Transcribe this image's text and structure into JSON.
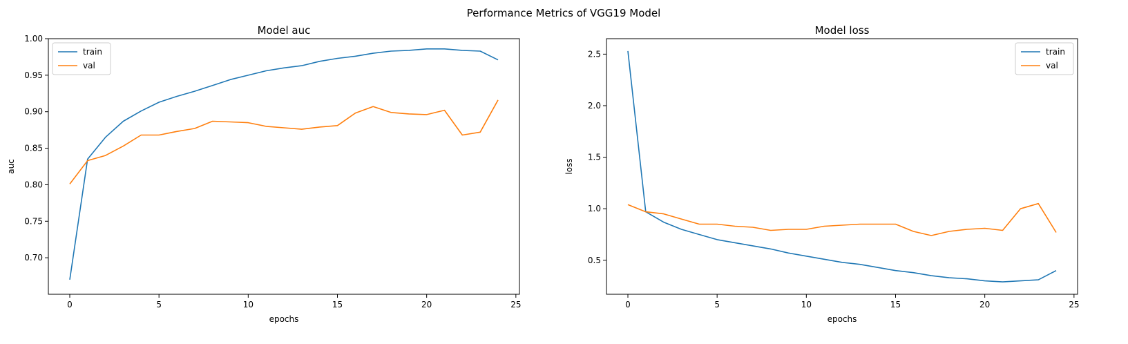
{
  "figure_title": "Performance Metrics of VGG19 Model",
  "chart_data": [
    {
      "type": "line",
      "title": "Model auc",
      "xlabel": "epochs",
      "ylabel": "auc",
      "xlim": [
        -1.2,
        25.2
      ],
      "ylim": [
        0.65,
        1.0
      ],
      "xticks": [
        0,
        5,
        10,
        15,
        20,
        25
      ],
      "yticks": [
        0.7,
        0.75,
        0.8,
        0.85,
        0.9,
        0.95,
        1.0
      ],
      "ytick_labels": [
        "0.70",
        "0.75",
        "0.80",
        "0.85",
        "0.90",
        "0.95",
        "1.00"
      ],
      "legend_position": "upper-left",
      "grid": false,
      "x": [
        0,
        1,
        2,
        3,
        4,
        5,
        6,
        7,
        8,
        9,
        10,
        11,
        12,
        13,
        14,
        15,
        16,
        17,
        18,
        19,
        20,
        21,
        22,
        23,
        24
      ],
      "series": [
        {
          "name": "train",
          "color": "#1f77b4",
          "values": [
            0.67,
            0.835,
            0.865,
            0.887,
            0.901,
            0.913,
            0.921,
            0.928,
            0.936,
            0.944,
            0.95,
            0.956,
            0.96,
            0.963,
            0.969,
            0.973,
            0.976,
            0.98,
            0.983,
            0.984,
            0.986,
            0.986,
            0.984,
            0.983,
            0.971
          ]
        },
        {
          "name": "val",
          "color": "#ff7f0e",
          "values": [
            0.801,
            0.833,
            0.84,
            0.853,
            0.868,
            0.868,
            0.873,
            0.877,
            0.887,
            0.886,
            0.885,
            0.88,
            0.878,
            0.876,
            0.879,
            0.881,
            0.898,
            0.907,
            0.899,
            0.897,
            0.896,
            0.902,
            0.868,
            0.872,
            0.916
          ]
        }
      ]
    },
    {
      "type": "line",
      "title": "Model loss",
      "xlabel": "epochs",
      "ylabel": "loss",
      "xlim": [
        -1.2,
        25.2
      ],
      "ylim": [
        0.17,
        2.65
      ],
      "xticks": [
        0,
        5,
        10,
        15,
        20,
        25
      ],
      "yticks": [
        0.5,
        1.0,
        1.5,
        2.0,
        2.5
      ],
      "ytick_labels": [
        "0.5",
        "1.0",
        "1.5",
        "2.0",
        "2.5"
      ],
      "legend_position": "upper-right",
      "grid": false,
      "x": [
        0,
        1,
        2,
        3,
        4,
        5,
        6,
        7,
        8,
        9,
        10,
        11,
        12,
        13,
        14,
        15,
        16,
        17,
        18,
        19,
        20,
        21,
        22,
        23,
        24
      ],
      "series": [
        {
          "name": "train",
          "color": "#1f77b4",
          "values": [
            2.53,
            0.97,
            0.87,
            0.8,
            0.75,
            0.7,
            0.67,
            0.64,
            0.61,
            0.57,
            0.54,
            0.51,
            0.48,
            0.46,
            0.43,
            0.4,
            0.38,
            0.35,
            0.33,
            0.32,
            0.3,
            0.29,
            0.3,
            0.31,
            0.4
          ]
        },
        {
          "name": "val",
          "color": "#ff7f0e",
          "values": [
            1.04,
            0.97,
            0.95,
            0.9,
            0.85,
            0.85,
            0.83,
            0.82,
            0.79,
            0.8,
            0.8,
            0.83,
            0.84,
            0.85,
            0.85,
            0.85,
            0.78,
            0.74,
            0.78,
            0.8,
            0.81,
            0.79,
            1.0,
            1.05,
            0.77
          ]
        }
      ]
    }
  ]
}
